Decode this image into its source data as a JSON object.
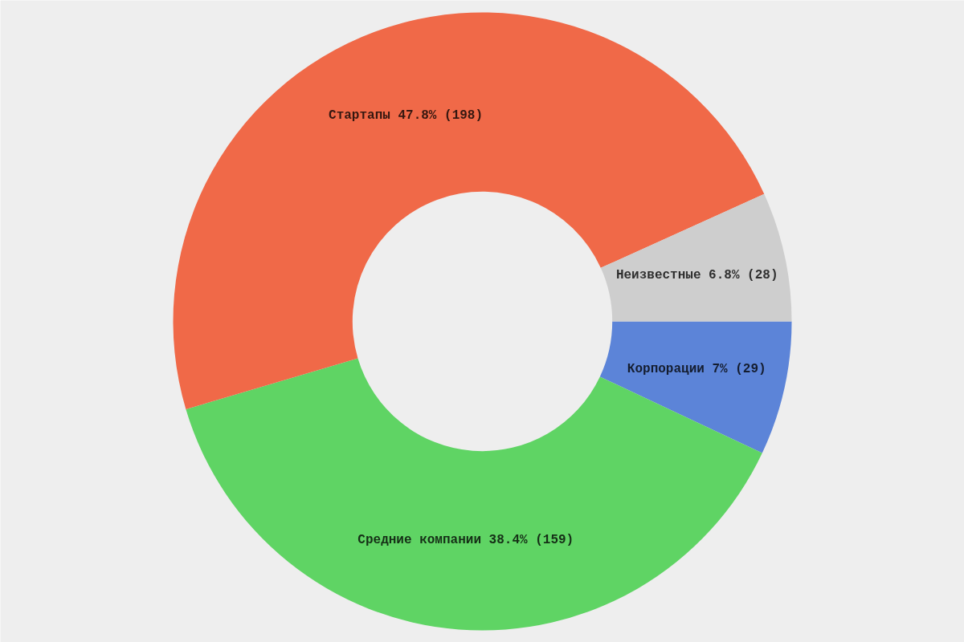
{
  "chart_data": {
    "type": "donut",
    "categories": [
      "Корпорации",
      "Средние компании",
      "Стартапы",
      "Неизвестные"
    ],
    "values": [
      29,
      159,
      198,
      28
    ],
    "value_labels": [
      "7% (29)",
      "38.4% (159)",
      "47.8% (198)",
      "6.8% (28)"
    ],
    "colors": [
      "#5c84d8",
      "#5fd464",
      "#f06948",
      "#cecece"
    ]
  }
}
